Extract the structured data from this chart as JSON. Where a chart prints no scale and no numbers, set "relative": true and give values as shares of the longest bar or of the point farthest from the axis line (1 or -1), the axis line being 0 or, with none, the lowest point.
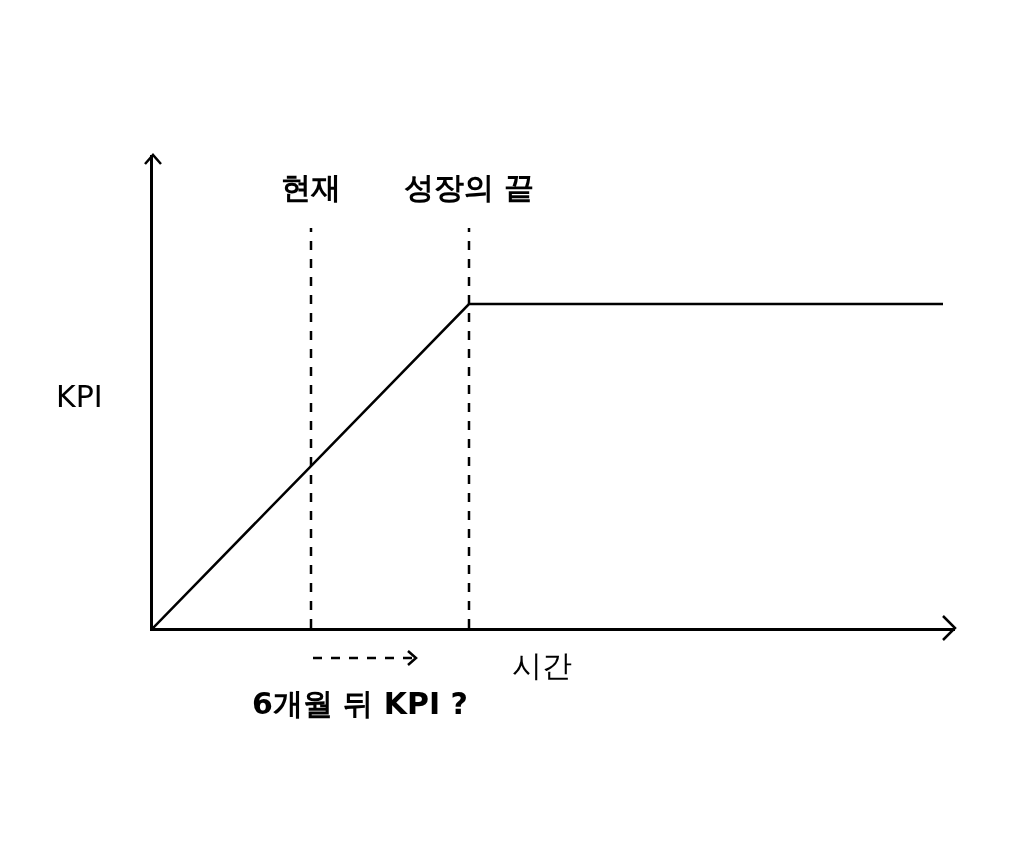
{
  "chart_data": {
    "type": "line",
    "relative": true,
    "xlabel": "시간",
    "ylabel": "KPI",
    "categories": [
      null,
      null,
      null,
      null,
      null,
      null
    ],
    "series": [
      {
        "color": "#000000",
        "values": [
          0,
          0.5,
          1,
          1,
          1,
          1
        ]
      }
    ],
    "annotations": [
      "현재",
      "성장의 끝",
      "6개월 뒤 KPI ?"
    ],
    "line_style": "solid"
  }
}
